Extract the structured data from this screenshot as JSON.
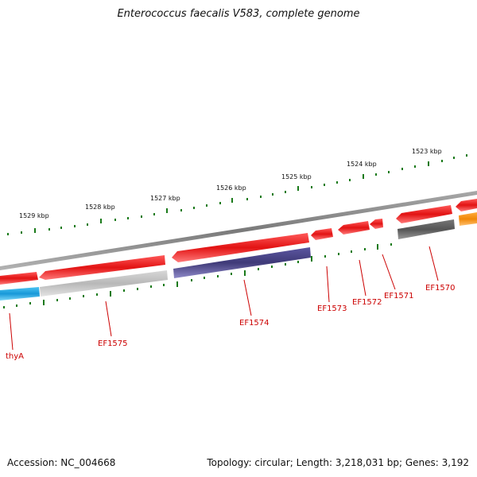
{
  "title": "Enterococcus faecalis V583, complete genome",
  "footer": {
    "accession": "Accession: NC_004668",
    "summary": "Topology: circular; Length: 3,218,031 bp; Genes: 3,192"
  },
  "colors": {
    "backbone": "#8a8a8a",
    "tick": "#1a7a1a",
    "label": "#cc0000",
    "red_gene": "#e21313",
    "purple_gene": "#45407e",
    "light_gray_gene": "#bcbcbc",
    "dark_gray_gene": "#5c5c5c",
    "cyan_gene": "#1fa8e0",
    "orange_gene": "#f28c0e"
  },
  "ruler_labels": [
    "1529 kbp",
    "1528 kbp",
    "1527 kbp",
    "1526 kbp",
    "1525 kbp",
    "1524 kbp",
    "1523 kbp"
  ],
  "gene_labels": [
    "thyA",
    "EF1575",
    "EF1574",
    "EF1573",
    "EF1572",
    "EF1571",
    "EF1570"
  ]
}
